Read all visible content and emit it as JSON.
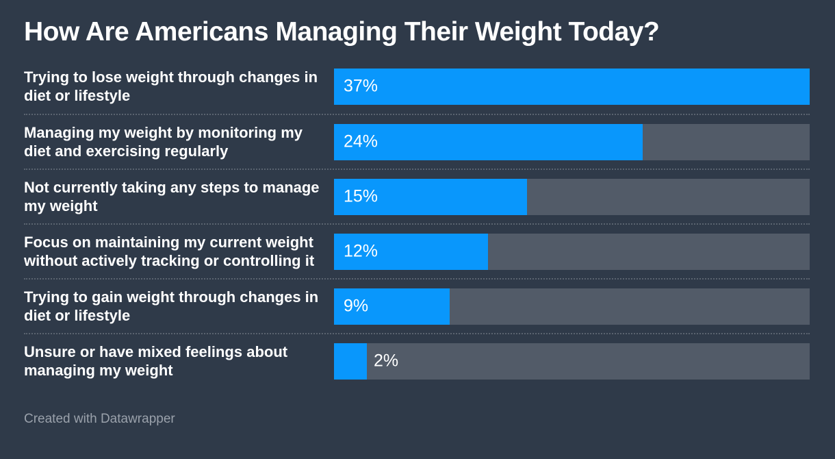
{
  "title": "How Are Americans Managing Their Weight Today?",
  "footer": {
    "text": "Created with Datawrapper"
  },
  "colors": {
    "background": "#2f3a49",
    "bar": "#0997fc",
    "bar_track": "#525b68",
    "separator": "#5b6470",
    "title_text": "#ffffff",
    "label_text": "#ffffff",
    "value_text": "#ffffff",
    "footer_text": "#9aa1ab"
  },
  "chart_data": {
    "type": "bar",
    "orientation": "horizontal",
    "title": "How Are Americans Managing Their Weight Today?",
    "categories": [
      "Trying to lose weight through changes in diet or lifestyle",
      "Managing my weight by monitoring my diet and exercising regularly",
      "Not currently taking any steps to manage my weight",
      "Focus on maintaining my current weight without actively tracking or controlling it",
      "Trying to gain weight through changes in diet or lifestyle",
      "Unsure or have mixed feelings about managing my weight"
    ],
    "values": [
      37,
      24,
      15,
      12,
      9,
      2
    ],
    "value_labels": [
      "37%",
      "24%",
      "15%",
      "12%",
      "9%",
      "2%"
    ],
    "unit": "%",
    "xlim": [
      0,
      37
    ],
    "bars_scaled_to_max": true,
    "grid": false,
    "legend": false,
    "value_label_position": "inside-start"
  }
}
